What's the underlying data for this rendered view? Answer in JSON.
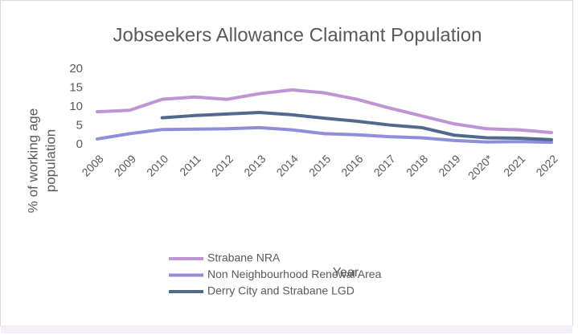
{
  "chart_data": {
    "type": "line",
    "title": "Jobseekers Allowance Claimant Population",
    "y_label": [
      "% of working age",
      "population"
    ],
    "x_label": "Year",
    "categories": [
      "2008",
      "2009",
      "2010",
      "2011",
      "2012",
      "2013",
      "2014",
      "2015",
      "2016",
      "2017",
      "2018",
      "2019",
      "2020*",
      "2021",
      "2022"
    ],
    "series": [
      {
        "name": "Strabane NRA",
        "color": "#bf94d4",
        "values": [
          8.7,
          9.1,
          12,
          12.6,
          12,
          13.5,
          14.5,
          13.7,
          12,
          9.7,
          7.6,
          5.5,
          4.2,
          3.9,
          3.2
        ]
      },
      {
        "name": "Non Neighbourhood Renewal Area",
        "color": "#8e8edb",
        "values": [
          1.5,
          2.9,
          4,
          4.1,
          4.2,
          4.5,
          3.9,
          2.9,
          2.6,
          2.1,
          1.8,
          1.1,
          0.7,
          0.8,
          0.6
        ]
      },
      {
        "name": "Derry City and Strabane LGD",
        "color": "#52698e",
        "values": [
          null,
          null,
          7.1,
          7.7,
          8.1,
          8.5,
          7.9,
          7,
          6.2,
          5.2,
          4.5,
          2.5,
          1.8,
          1.7,
          1.3
        ]
      }
    ],
    "ylim": [
      0,
      20
    ],
    "yticks": [
      0,
      5,
      10,
      15,
      20
    ],
    "grid": false,
    "legend": "bottom-left"
  }
}
